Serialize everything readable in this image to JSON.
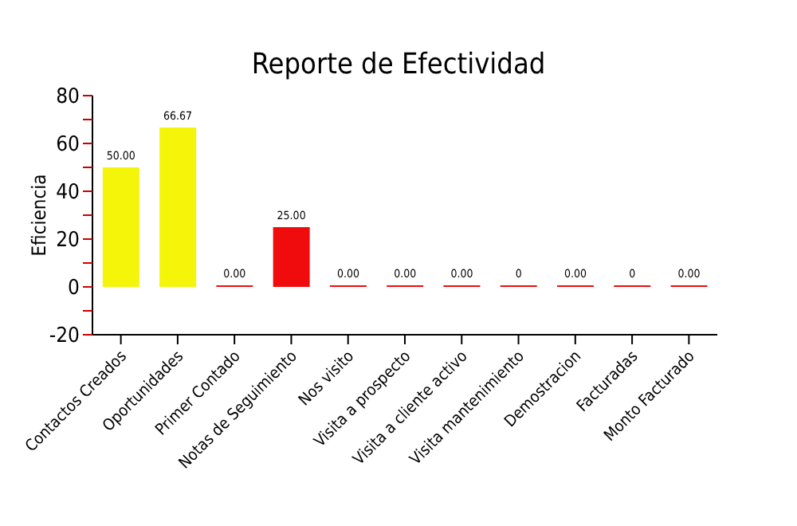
{
  "chart_data": {
    "type": "bar",
    "title": "Reporte de Efectividad",
    "ylabel": "Eficiencia",
    "categories": [
      "Contactos Creados",
      "Oportunidades",
      "Primer Contado",
      "Notas de Seguimiento",
      "Nos visito",
      "Visita a prospecto",
      "Visita a cliente activo",
      "Visita mantenimiento",
      "Demostracion",
      "Facturadas",
      "Monto Facturado"
    ],
    "values": [
      50,
      66.67,
      0,
      25,
      0,
      0,
      0,
      0,
      0,
      0,
      0
    ],
    "value_labels": [
      "50.00",
      "66.67",
      "0.00",
      "25.00",
      "0.00",
      "0.00",
      "0.00",
      "0",
      "0.00",
      "0",
      "0.00"
    ],
    "colors": [
      "#f5f50a",
      "#f5f50a",
      "#f00c0c",
      "#f00c0c",
      "#f00c0c",
      "#f00c0c",
      "#f00c0c",
      "#f00c0c",
      "#f00c0c",
      "#f00c0c",
      "#f00c0c"
    ],
    "ylim": [
      -20,
      80
    ],
    "yticks": [
      -20,
      {
        "value": -10,
        "label": null
      },
      0,
      {
        "value": 10,
        "label": null
      },
      20,
      {
        "value": 30,
        "label": null
      },
      40,
      {
        "value": 50,
        "label": null
      },
      60,
      {
        "value": 70,
        "label": null
      },
      80
    ]
  }
}
